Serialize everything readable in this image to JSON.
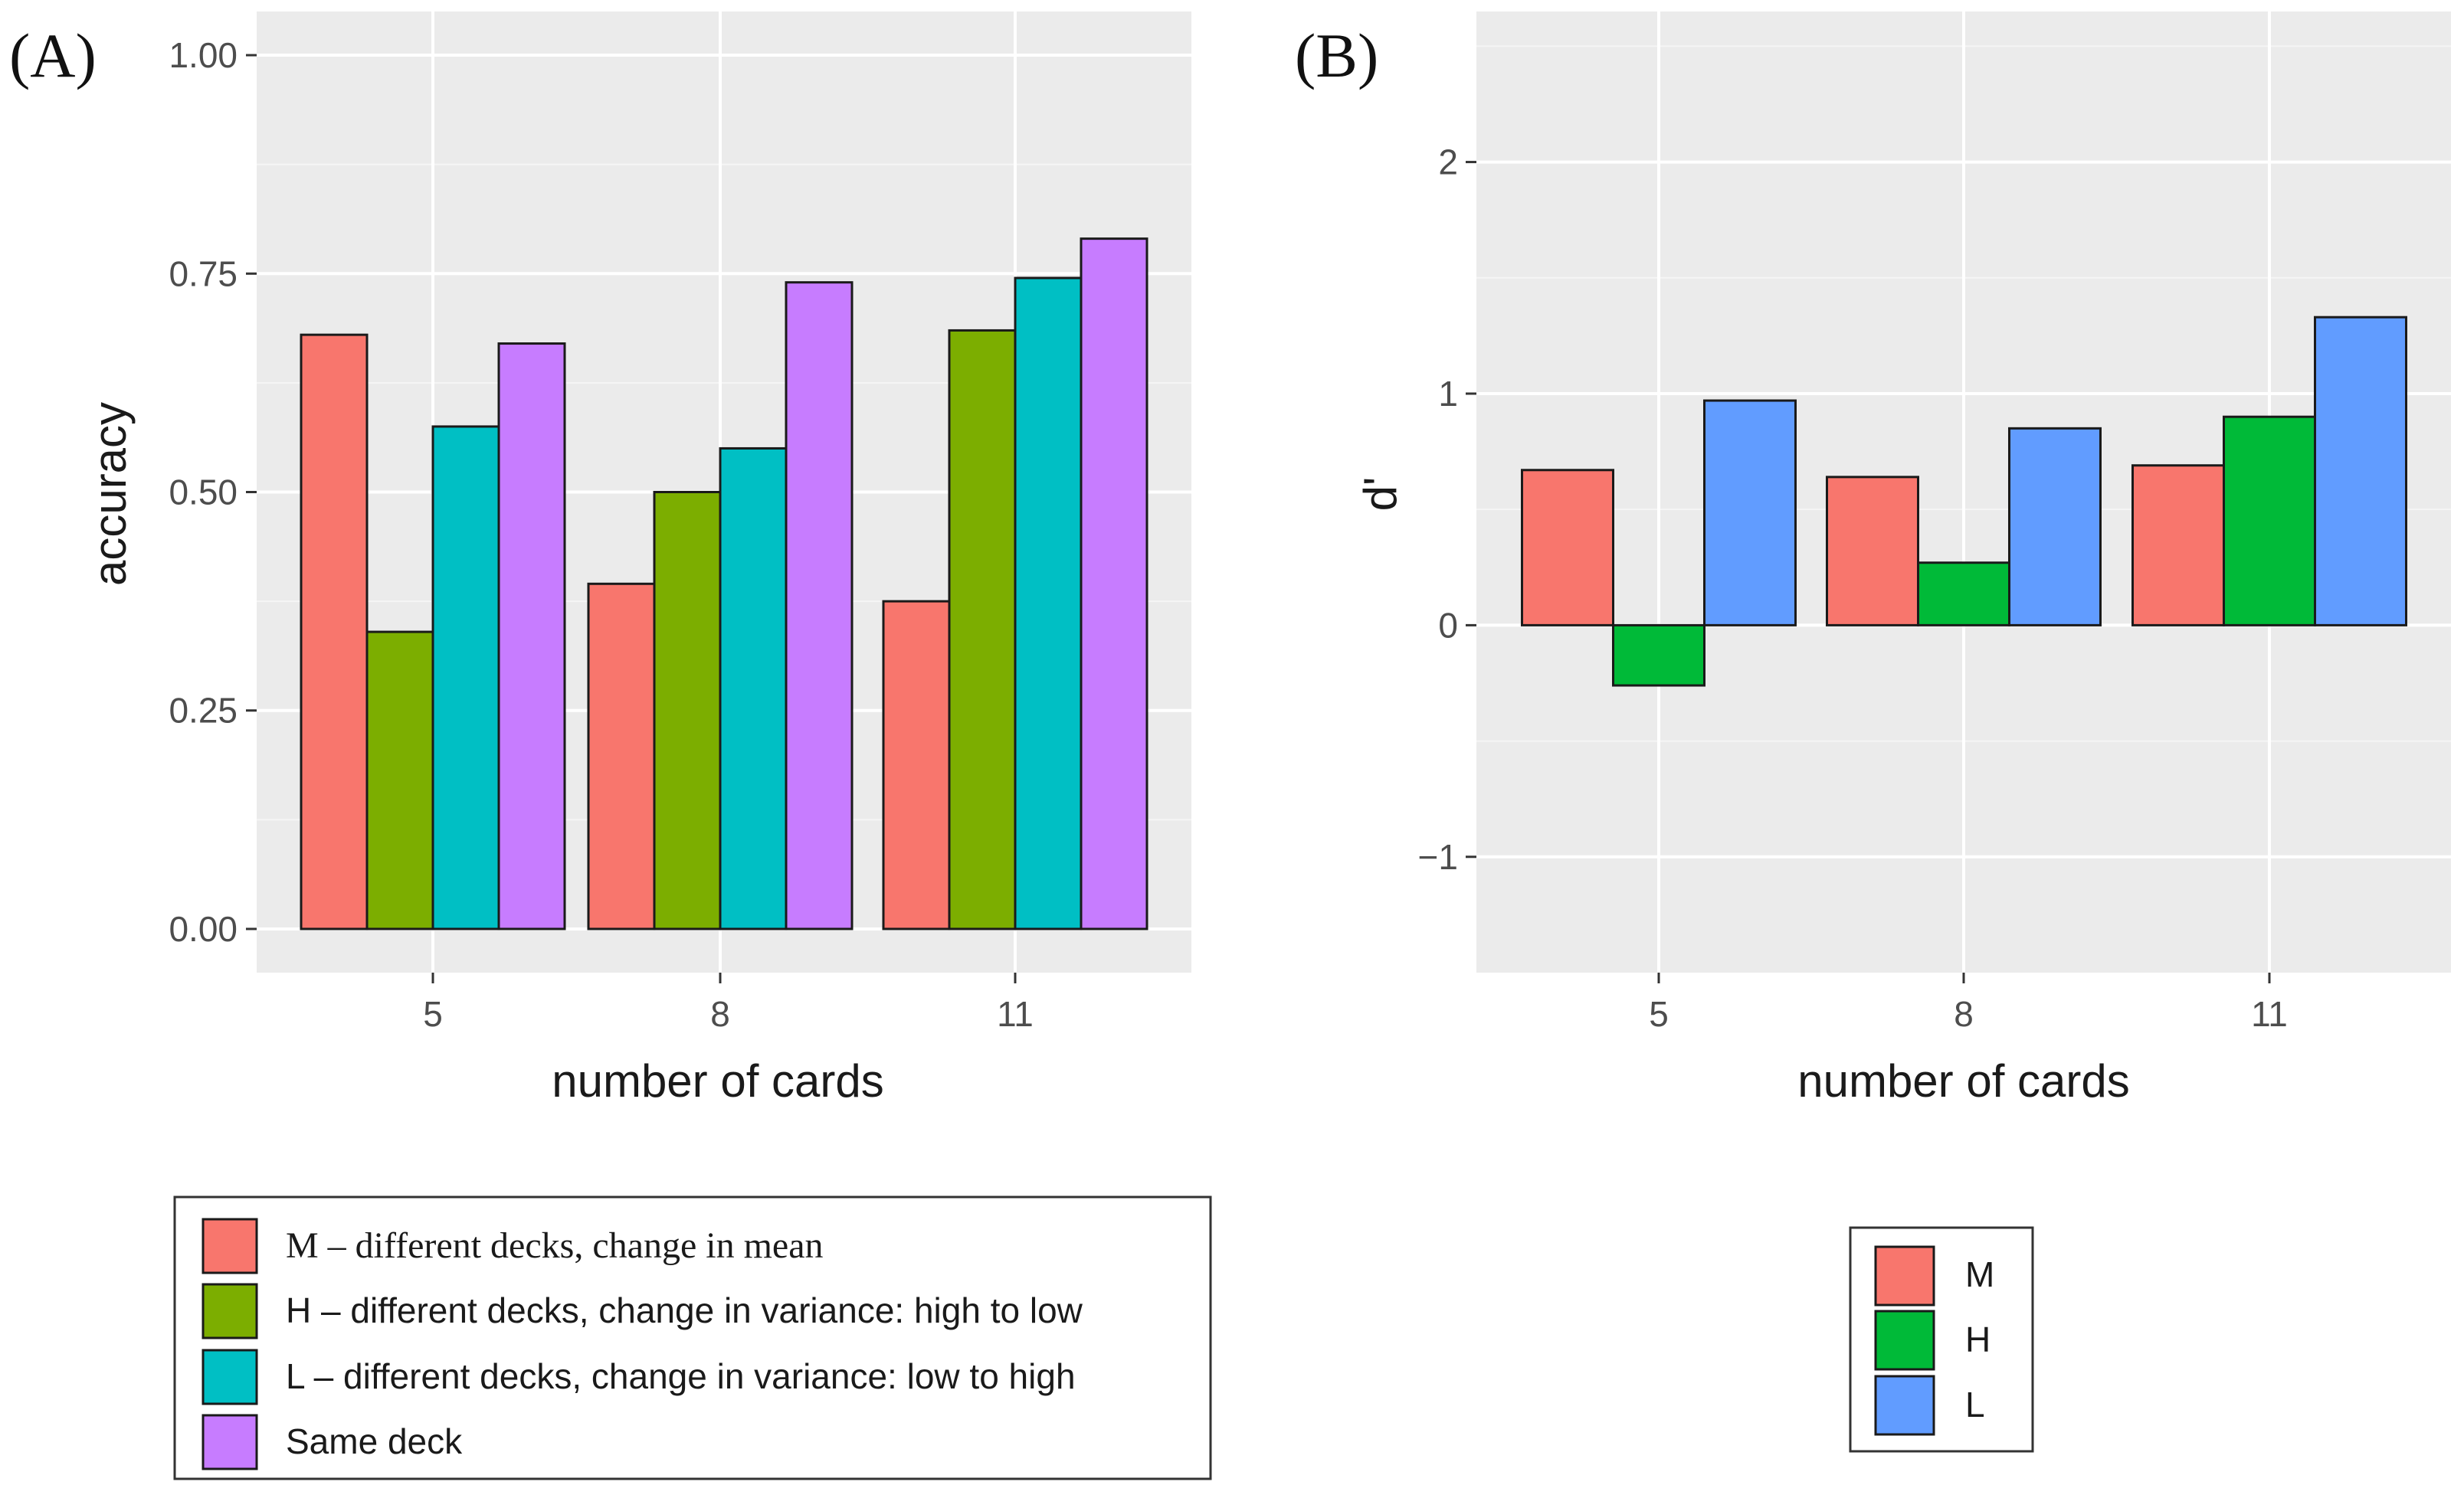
{
  "chart_data": [
    {
      "panel": "(A)",
      "type": "bar",
      "xlabel": "number of cards",
      "ylabel": "accuracy",
      "categories": [
        "5",
        "8",
        "11"
      ],
      "ylim": [
        -0.05,
        1.05
      ],
      "yticks": [
        "0.00",
        "0.25",
        "0.50",
        "0.75",
        "1.00"
      ],
      "ytick_values": [
        0,
        0.25,
        0.5,
        0.75,
        1.0
      ],
      "grid": true,
      "legend_position": "bottom",
      "series": [
        {
          "key": "M",
          "name": "M – different decks, change in mean",
          "color": "#F8766D",
          "values": [
            0.68,
            0.395,
            0.375
          ]
        },
        {
          "key": "H",
          "name": "H – different decks, change in variance: high to low",
          "color": "#7CAE00",
          "values": [
            0.34,
            0.5,
            0.685
          ]
        },
        {
          "key": "L",
          "name": "L – different decks, change in variance: low to high",
          "color": "#00BFC4",
          "values": [
            0.575,
            0.55,
            0.745
          ]
        },
        {
          "key": "S",
          "name": "Same deck",
          "color": "#C77CFF",
          "values": [
            0.67,
            0.74,
            0.79
          ]
        }
      ]
    },
    {
      "panel": "(B)",
      "type": "bar",
      "xlabel": "number of cards",
      "ylabel": "d'",
      "categories": [
        "5",
        "8",
        "11"
      ],
      "ylim": [
        -1.5,
        2.65
      ],
      "yticks": [
        "−1",
        "0",
        "1",
        "2"
      ],
      "ytick_values": [
        -1,
        0,
        1,
        2
      ],
      "grid": true,
      "legend_position": "bottom",
      "series": [
        {
          "key": "M",
          "name": "M",
          "color": "#F8766D",
          "values": [
            0.67,
            0.64,
            0.69
          ]
        },
        {
          "key": "H",
          "name": "H",
          "color": "#00BA38",
          "values": [
            -0.26,
            0.27,
            0.9
          ]
        },
        {
          "key": "L",
          "name": "L",
          "color": "#619CFF",
          "values": [
            0.97,
            0.85,
            1.33
          ]
        }
      ]
    }
  ]
}
